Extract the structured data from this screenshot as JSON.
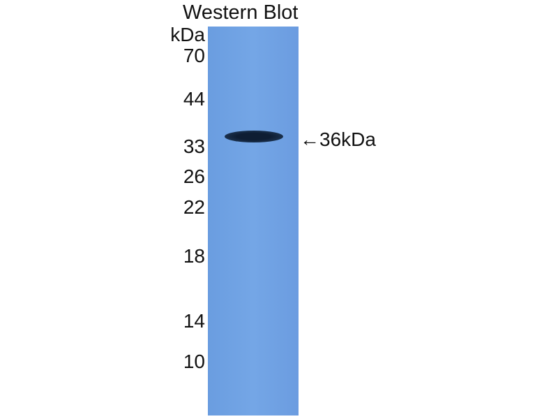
{
  "title": "Western Blot",
  "unit": "kDa",
  "markers": [
    "70",
    "44",
    "33",
    "26",
    "22",
    "18",
    "14",
    "10"
  ],
  "band_annotation": "←36kDa",
  "colors": {
    "membrane": "#6fa1e3",
    "band": "#13243b"
  }
}
